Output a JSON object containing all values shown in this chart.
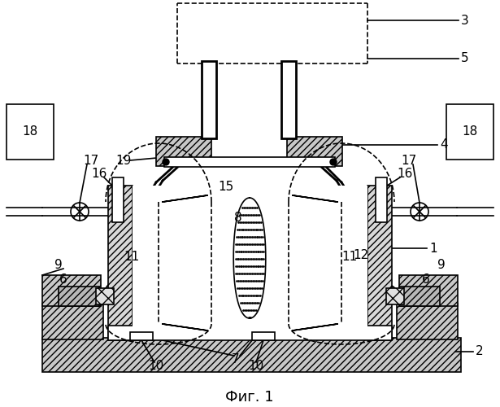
{
  "caption": "Фиг. 1",
  "caption_fontsize": 13,
  "bg_color": "#ffffff",
  "line_color": "#000000",
  "lw_main": 1.2,
  "lw_thick": 2.0
}
